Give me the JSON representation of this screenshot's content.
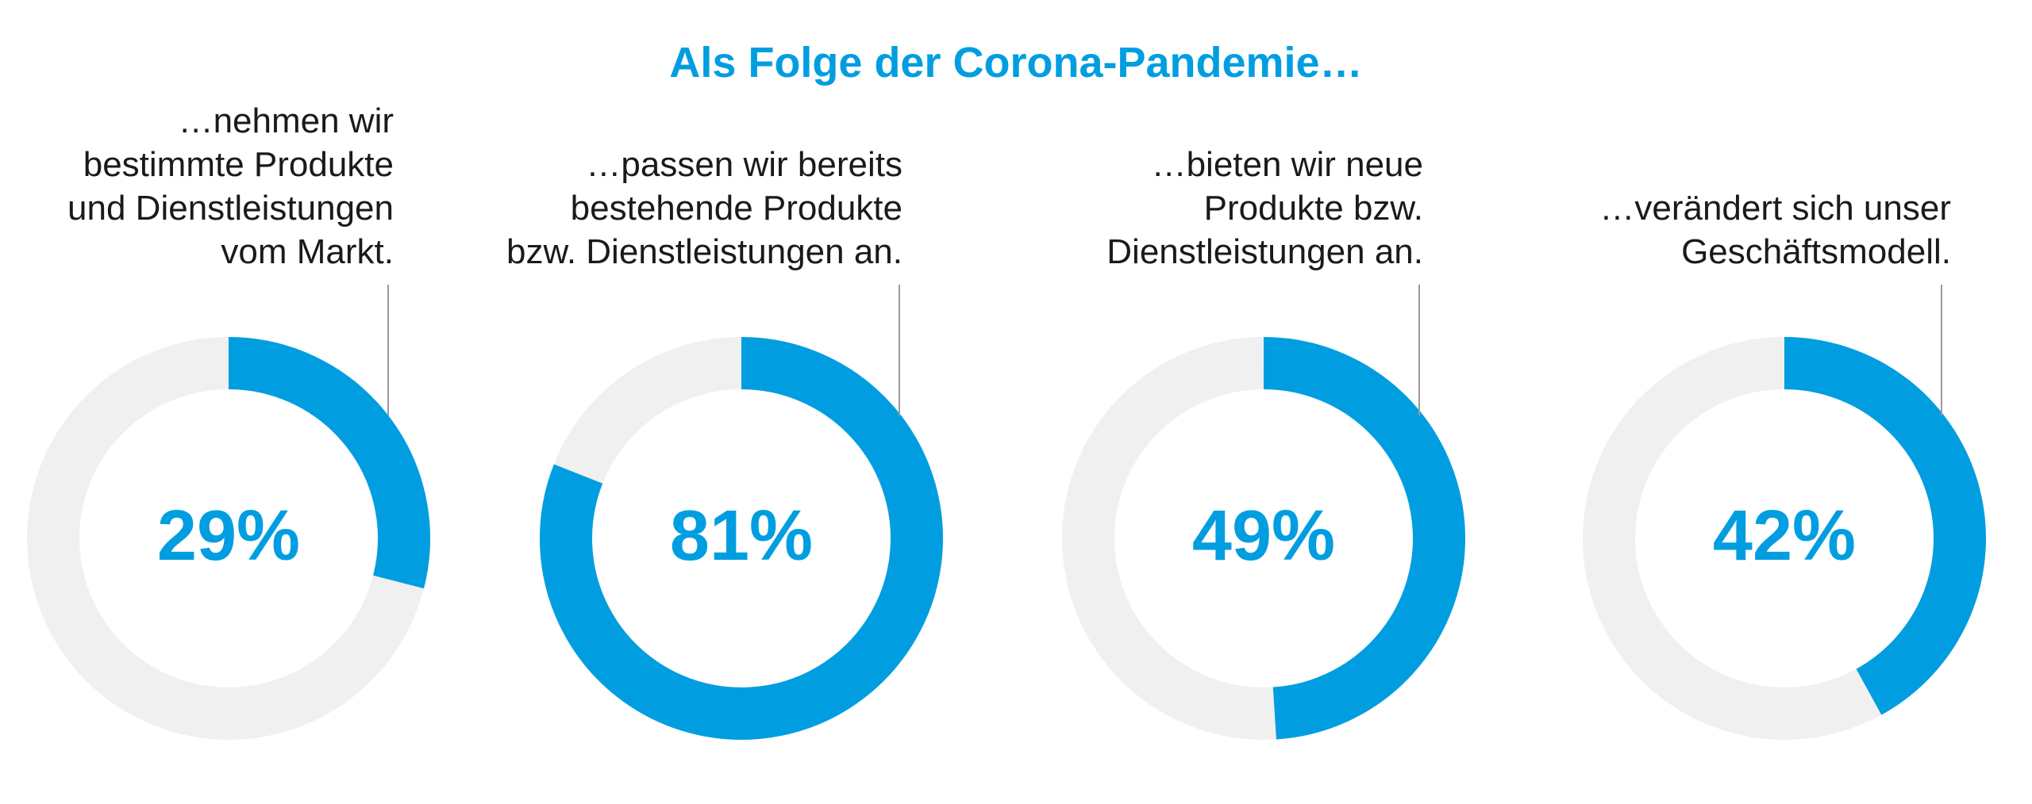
{
  "chart_data": {
    "type": "pie",
    "subtype": "donut",
    "title": "Als Folge der Corona-Pandemie…",
    "categories": [
      "…nehmen wir bestimmte Produkte und Dienstleistungen vom Markt.",
      "…passen wir bereits bestehende Produkte bzw. Dienstleistungen an.",
      "…bieten wir neue Produkte bzw. Dienstleistungen an.",
      "…verändert sich unser Geschäftsmodell."
    ],
    "values": [
      29,
      81,
      49,
      42
    ],
    "value_labels": [
      "29%",
      "81%",
      "49%",
      "42%"
    ],
    "unit": "%",
    "colors": {
      "value": "#009ee0",
      "remainder": "#f0f0f0",
      "leader": "#9a9a9a"
    },
    "legend": "none"
  },
  "labels": [
    {
      "lines": [
        "…nehmen wir",
        "bestimmte Produkte",
        "und Dienstleistungen",
        "vom Markt."
      ]
    },
    {
      "lines": [
        "…passen wir bereits",
        "bestehende Produkte",
        "bzw. Dienstleistungen an."
      ]
    },
    {
      "lines": [
        "…bieten wir neue",
        "Produkte bzw.",
        "Dienstleistungen an."
      ]
    },
    {
      "lines": [
        "…verändert sich unser",
        "Geschäftsmodell."
      ]
    }
  ]
}
